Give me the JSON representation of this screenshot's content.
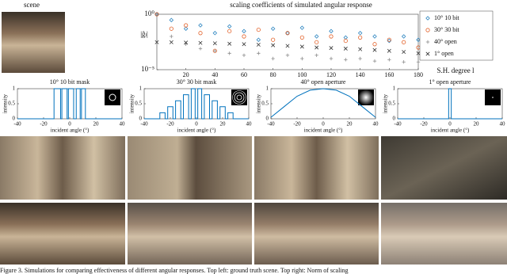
{
  "scene_label": "scene",
  "chart_data": [
    {
      "type": "scatter",
      "title": "scaling coefficients of simulated angular response",
      "xlabel": "S.H. degree l",
      "ylabel": "|ĝₗ|",
      "log_y": true,
      "legend": "right",
      "xlim": [
        0,
        180
      ],
      "ylim": [
        1e-05,
        1
      ],
      "xticks": [
        20,
        40,
        60,
        80,
        100,
        120,
        140,
        160,
        180
      ],
      "yticks": [
        {
          "value": 1,
          "label": "10⁰"
        },
        {
          "value": 1e-05,
          "label": "10⁻⁵"
        }
      ],
      "x": [
        0,
        10,
        20,
        30,
        40,
        50,
        60,
        70,
        80,
        90,
        100,
        110,
        120,
        130,
        140,
        150,
        160,
        170,
        180
      ],
      "series": [
        {
          "name": "10° 10 bit",
          "color": "#2e86c1",
          "marker": "diamond",
          "values": [
            1,
            0.3,
            0.05,
            0.1,
            0.02,
            0.08,
            0.03,
            0.005,
            0.05,
            0.02,
            0.06,
            0.01,
            0.03,
            0.008,
            0.02,
            0.01,
            0.004,
            0.01,
            0.005
          ]
        },
        {
          "name": "30° 30 bit",
          "color": "#e3622a",
          "marker": "circle",
          "values": [
            1,
            0.05,
            0.1,
            0.02,
            0.0005,
            0.03,
            0.01,
            0.04,
            0.005,
            0.02,
            0.008,
            0.003,
            0.01,
            0.004,
            0.008,
            0.002,
            0.005,
            0.003,
            0.001
          ]
        },
        {
          "name": "40° open",
          "color": "#8c8c8c",
          "marker": "plus",
          "values": [
            1,
            0.01,
            0.002,
            0.0008,
            0.0005,
            0.0003,
            0.0002,
            0.0003,
            0.0001,
            0.0002,
            0.0001,
            0.0002,
            0.0001,
            8e-05,
            0.0001,
            6e-05,
            8e-05,
            5e-05,
            5e-05
          ]
        },
        {
          "name": "1° open",
          "color": "#333333",
          "marker": "cross",
          "values": [
            0.003,
            0.003,
            0.0028,
            0.0026,
            0.0024,
            0.0022,
            0.002,
            0.0018,
            0.0016,
            0.0014,
            0.0012,
            0.001,
            0.0009,
            0.0008,
            0.0007,
            0.0006,
            0.0005,
            0.0004,
            0.0003
          ]
        }
      ]
    },
    {
      "type": "line",
      "title": "10° 10 bit mask",
      "xlabel": "incident angle (°)",
      "ylabel": "intensity",
      "color": "#0072bd",
      "xlim": [
        -40,
        40
      ],
      "ylim": [
        0,
        1
      ],
      "xticks": [
        -40,
        -20,
        0,
        20,
        40
      ],
      "yticks": [
        0,
        0.5,
        1
      ],
      "x": [
        -40,
        -12,
        -12,
        -7,
        -7,
        -6,
        -6,
        -2,
        -2,
        -1,
        -1,
        3,
        3,
        5,
        5,
        8,
        8,
        9,
        9,
        12,
        12,
        40
      ],
      "values": [
        0,
        0,
        1,
        1,
        0,
        0,
        1,
        1,
        0,
        0,
        1,
        1,
        0,
        0,
        1,
        1,
        0,
        0,
        1,
        1,
        0,
        0
      ]
    },
    {
      "type": "line",
      "title": "30° 30 bit mask",
      "xlabel": "incident angle (°)",
      "ylabel": "intensity",
      "color": "#0072bd",
      "xlim": [
        -40,
        40
      ],
      "ylim": [
        0,
        1
      ],
      "xticks": [
        -40,
        -20,
        0,
        20,
        40
      ],
      "yticks": [
        0,
        0.5,
        1
      ],
      "x": [
        -40,
        -28,
        -28,
        -24,
        -24,
        -22,
        -22,
        -18,
        -18,
        -16,
        -16,
        -12,
        -12,
        -10,
        -10,
        -6,
        -6,
        -4,
        -4,
        -1,
        -1,
        1,
        1,
        4,
        4,
        6,
        6,
        10,
        10,
        12,
        12,
        16,
        16,
        18,
        18,
        22,
        22,
        24,
        24,
        28,
        28,
        40
      ],
      "values": [
        0,
        0,
        0.2,
        0.2,
        0,
        0,
        0.4,
        0.4,
        0,
        0,
        0.6,
        0.6,
        0,
        0,
        0.8,
        0.8,
        0,
        0,
        1,
        1,
        0,
        0,
        1,
        1,
        0,
        0,
        0.8,
        0.8,
        0,
        0,
        0.6,
        0.6,
        0,
        0,
        0.4,
        0.4,
        0,
        0,
        0.2,
        0.2,
        0,
        0
      ]
    },
    {
      "type": "line",
      "title": "40° open aperture",
      "xlabel": "incident angle (°)",
      "ylabel": "intensity",
      "color": "#0072bd",
      "xlim": [
        -40,
        40
      ],
      "ylim": [
        0,
        1
      ],
      "xticks": [
        -40,
        -20,
        0,
        20,
        40
      ],
      "yticks": [
        0,
        0.5,
        1
      ],
      "x": [
        -40,
        -30,
        -20,
        -10,
        0,
        10,
        20,
        30,
        40
      ],
      "values": [
        0.05,
        0.4,
        0.75,
        0.95,
        1,
        0.95,
        0.75,
        0.4,
        0.05
      ]
    },
    {
      "type": "line",
      "title": "1° open aperture",
      "xlabel": "incident angle (°)",
      "ylabel": "intensity",
      "color": "#0072bd",
      "xlim": [
        -40,
        40
      ],
      "ylim": [
        0,
        1
      ],
      "xticks": [
        -40,
        -20,
        0,
        20,
        40
      ],
      "yticks": [
        0,
        0.5,
        1
      ],
      "x": [
        -40,
        -1,
        -1,
        1,
        1,
        40
      ],
      "values": [
        0,
        0,
        1,
        1,
        0,
        0
      ]
    }
  ],
  "caption": "Figure 3. Simulations for comparing effectiveness of different angular responses. Top left: ground truth scene. Top right: Norm of scaling"
}
